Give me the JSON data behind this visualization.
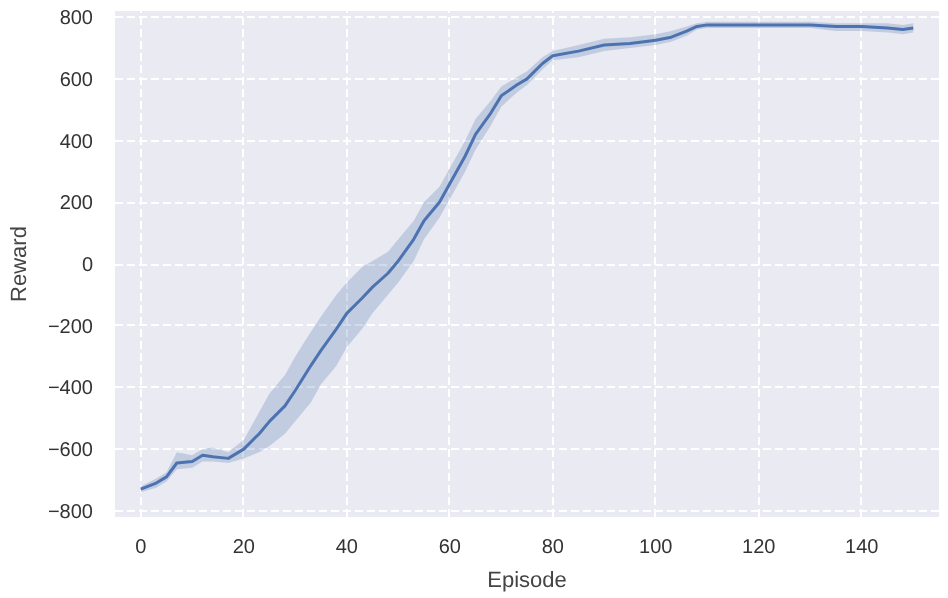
{
  "chart_data": {
    "type": "line",
    "xlabel": "Episode",
    "ylabel": "Reward",
    "x": [
      0,
      3,
      5,
      7,
      10,
      12,
      14,
      17,
      20,
      23,
      25,
      28,
      30,
      33,
      35,
      38,
      40,
      43,
      45,
      48,
      50,
      53,
      55,
      58,
      60,
      63,
      65,
      68,
      70,
      73,
      75,
      78,
      80,
      85,
      90,
      95,
      100,
      103,
      106,
      108,
      110,
      115,
      120,
      125,
      130,
      135,
      140,
      145,
      148,
      150
    ],
    "series": [
      {
        "color": "#4c72b0",
        "values": [
          -730,
          -710,
          -690,
          -645,
          -640,
          -620,
          -625,
          -630,
          -600,
          -550,
          -510,
          -460,
          -410,
          -330,
          -280,
          -210,
          -160,
          -110,
          -75,
          -30,
          10,
          80,
          140,
          200,
          260,
          350,
          420,
          490,
          545,
          580,
          600,
          650,
          675,
          690,
          710,
          715,
          725,
          735,
          755,
          770,
          775,
          775,
          775,
          775,
          775,
          770,
          770,
          765,
          760,
          765
        ],
        "lower": [
          -740,
          -725,
          -705,
          -665,
          -660,
          -640,
          -640,
          -645,
          -630,
          -610,
          -590,
          -550,
          -510,
          -450,
          -390,
          -330,
          -270,
          -210,
          -160,
          -100,
          -60,
          10,
          80,
          150,
          210,
          300,
          370,
          450,
          510,
          555,
          580,
          630,
          660,
          670,
          690,
          700,
          710,
          720,
          740,
          760,
          765,
          765,
          765,
          765,
          765,
          755,
          755,
          750,
          745,
          750
        ],
        "upper": [
          -720,
          -695,
          -675,
          -610,
          -620,
          -600,
          -595,
          -610,
          -570,
          -480,
          -420,
          -360,
          -300,
          -220,
          -170,
          -100,
          -60,
          -10,
          10,
          40,
          80,
          140,
          200,
          250,
          310,
          400,
          470,
          530,
          575,
          605,
          625,
          670,
          690,
          710,
          730,
          735,
          745,
          755,
          770,
          780,
          785,
          785,
          785,
          785,
          785,
          780,
          780,
          780,
          775,
          780
        ]
      }
    ],
    "xlim": [
      -5,
      155
    ],
    "ylim": [
      -820,
      820
    ],
    "xticks": [
      0,
      20,
      40,
      60,
      80,
      100,
      120,
      140
    ],
    "yticks": [
      -800,
      -600,
      -400,
      -200,
      0,
      200,
      400,
      600,
      800
    ],
    "grid": true
  }
}
